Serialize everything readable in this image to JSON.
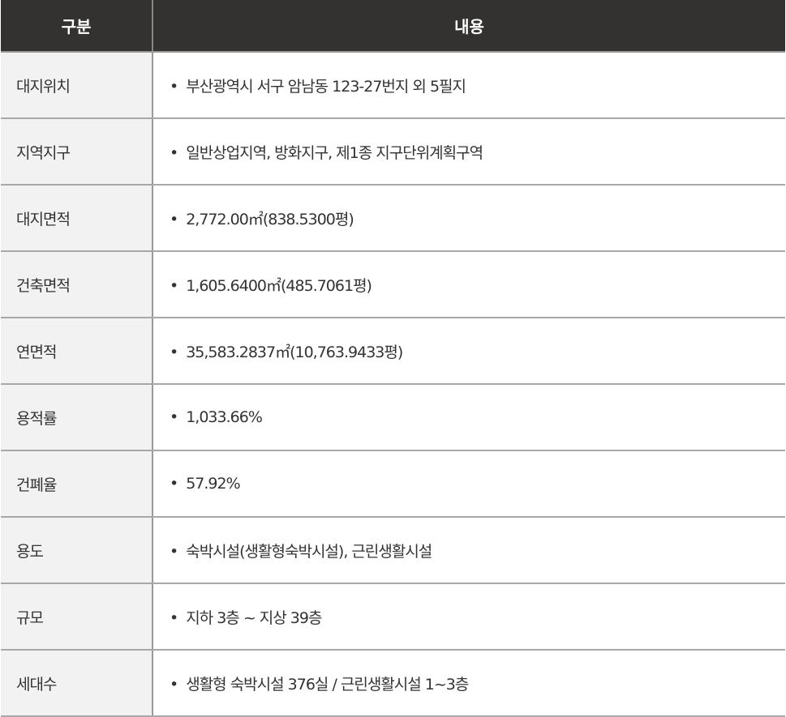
{
  "header": {
    "col1": "구분",
    "col2": "내용"
  },
  "rows": [
    {
      "label": "대지위치",
      "value": "부산광역시 서구 암남동 123-27번지 외 5필지"
    },
    {
      "label": "지역지구",
      "value": "일반상업지역, 방화지구, 제1종 지구단위계획구역"
    },
    {
      "label": "대지면적",
      "value": "2,772.00㎡(838.5300평)"
    },
    {
      "label": "건축면적",
      "value": "1,605.6400㎡(485.7061평)"
    },
    {
      "label": "연면적",
      "value": "35,583.2837㎡(10,763.9433평)"
    },
    {
      "label": "용적률",
      "value": "1,033.66%"
    },
    {
      "label": "건폐율",
      "value": "57.92%"
    },
    {
      "label": "용도",
      "value": "숙박시설(생활형숙박시설), 근린생활시설"
    },
    {
      "label": "규모",
      "value": "지하 3층 ~ 지상 39층"
    },
    {
      "label": "세대수",
      "value": "생활형 숙박시설 376실 / 근린생활시설 1~3층"
    }
  ],
  "bullet": "•"
}
